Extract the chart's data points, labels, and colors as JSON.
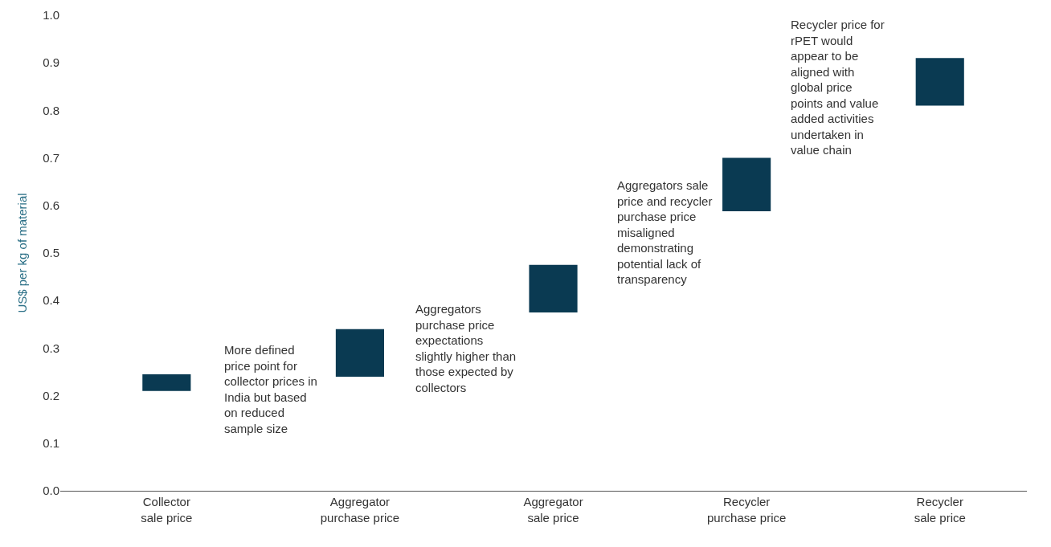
{
  "chart_data": {
    "type": "bar",
    "ylabel": "US$ per kg of material",
    "categories": [
      "Collector\nsale price",
      "Aggregator\npurchase price",
      "Aggregator\nsale price",
      "Recycler\npurchase price",
      "Recycler\nsale price"
    ],
    "base": [
      0.21,
      0.24,
      0.375,
      0.588,
      0.81
    ],
    "values": [
      0.035,
      0.1,
      0.1,
      0.112,
      0.1
    ],
    "color": "#0a3a52",
    "ylim": [
      0,
      1.0
    ],
    "yticks": [
      {
        "value": 0,
        "label": "0.0"
      },
      {
        "value": 0.1,
        "label": "0.1"
      },
      {
        "value": 0.2,
        "label": "0.2"
      },
      {
        "value": 0.3,
        "label": "0.3"
      },
      {
        "value": 0.4,
        "label": "0.4"
      },
      {
        "value": 0.5,
        "label": "0.5"
      },
      {
        "value": 0.6,
        "label": "0.6"
      },
      {
        "value": 0.7,
        "label": "0.7"
      },
      {
        "value": 0.8,
        "label": "0.8"
      },
      {
        "value": 0.9,
        "label": "0.9"
      },
      {
        "value": 1.0,
        "label": "1.0"
      }
    ],
    "annotations": [
      "More defined\nprice point for\ncollector prices in\nIndia but based\non reduced\nsample size",
      "Aggregators\npurchase price\nexpectations\nslightly higher than\nthose expected by\ncollectors",
      "Aggregators sale\nprice and recycler\npurchase price\nmisaligned\ndemonstrating\npotential lack of\ntransparency",
      "Recycler price for\nrPET would\nappear to be\naligned with\nglobal price\npoints and value\nadded activities\nundertaken in\nvalue chain"
    ]
  }
}
